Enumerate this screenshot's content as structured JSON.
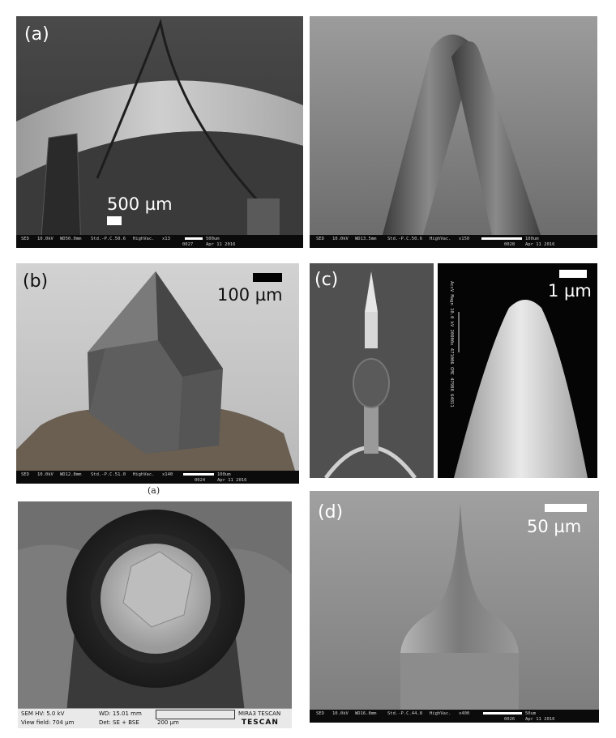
{
  "panels": {
    "a_left": {
      "label": "(a)",
      "scale_label": "500 µm",
      "infobar": {
        "detector": "SED",
        "kv": "10.0kV",
        "wd": "WD50.0mm",
        "std": "Std.-P.C.50.6",
        "vac": "HighVac.",
        "mag": "x13",
        "bar": "500um",
        "num": "0027",
        "date": "Apr 11 2016"
      }
    },
    "a_right": {
      "infobar": {
        "detector": "SED",
        "kv": "10.0kV",
        "wd": "WD13.5mm",
        "std": "Std.-P.C.50.6",
        "vac": "HighVac.",
        "mag": "x150",
        "bar": "100um",
        "num": "0028",
        "date": "Apr 11 2016"
      }
    },
    "b": {
      "label": "(b)",
      "scale_label": "100 µm",
      "infobar": {
        "detector": "SED",
        "kv": "10.0kV",
        "wd": "WD12.8mm",
        "std": "Std.-P.C.51.0",
        "vac": "HighVac.",
        "mag": "x140",
        "bar": "100um",
        "num": "0024",
        "date": "Apr 11 2016"
      },
      "caption": "(a)"
    },
    "b_bottom": {
      "tescan": {
        "hv": "SEM HV: 5.0 kV",
        "wd": "WD: 15.01 mm",
        "view": "View field: 704 µm",
        "det": "Det: SE + BSE",
        "bar": "200 µm",
        "brand": "MIRA3 TESCAN",
        "logo": "TESCAN"
      }
    },
    "c": {
      "label": "(c)",
      "scale_label": "1 µm",
      "side_text": "AccV Magn 10.0 kV 20000x 471006 CMC 47988 64811"
    },
    "d": {
      "label": "(d)",
      "scale_label": "50 µm",
      "infobar": {
        "detector": "SED",
        "kv": "10.0kV",
        "wd": "WD16.8mm",
        "std": "Std.-P.C.44.8",
        "vac": "HighVac.",
        "mag": "x400",
        "bar": "50um",
        "num": "0026",
        "date": "Apr 11 2016"
      }
    }
  }
}
